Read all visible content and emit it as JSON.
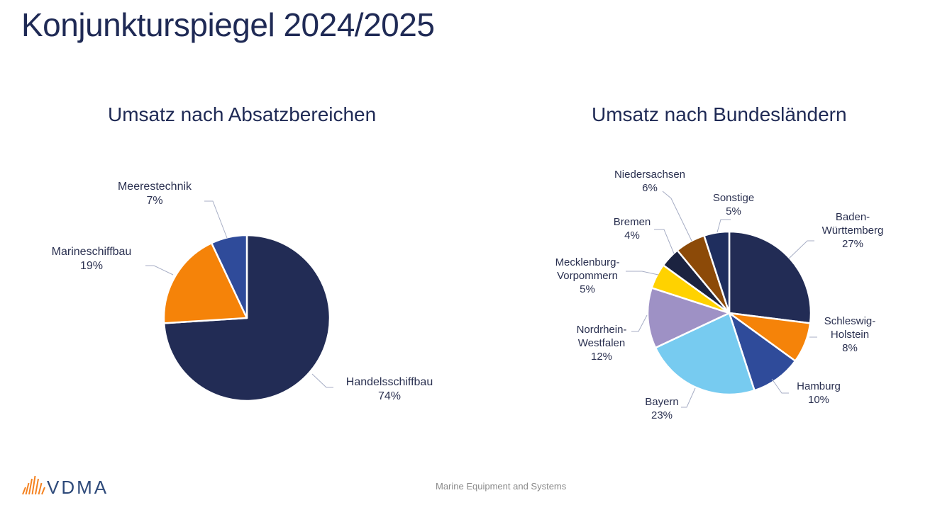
{
  "page": {
    "title": "Konjunkturspiegel 2024/2025",
    "footer": "Marine Equipment and Systems",
    "logo_text": "VDMA",
    "logo_color": "#f58220"
  },
  "chart_data": [
    {
      "type": "pie",
      "title": "Umsatz nach Absatzbereichen",
      "slices": [
        {
          "label": [
            "Handelsschiffbau"
          ],
          "percent_label": "74%",
          "value": 74,
          "color": "#222c55"
        },
        {
          "label": [
            "Marineschiffbau"
          ],
          "percent_label": "19%",
          "value": 19,
          "color": "#f58309"
        },
        {
          "label": [
            "Meerestechnik"
          ],
          "percent_label": "7%",
          "value": 7,
          "color": "#2f4b9a"
        }
      ]
    },
    {
      "type": "pie",
      "title": "Umsatz nach Bundesländern",
      "slices": [
        {
          "label": [
            "Baden-",
            "Württemberg"
          ],
          "percent_label": "27%",
          "value": 27,
          "color": "#222c55"
        },
        {
          "label": [
            "Schleswig-",
            "Holstein"
          ],
          "percent_label": "8%",
          "value": 8,
          "color": "#f58309"
        },
        {
          "label": [
            "Hamburg"
          ],
          "percent_label": "10%",
          "value": 10,
          "color": "#2f4b9a"
        },
        {
          "label": [
            "Bayern"
          ],
          "percent_label": "23%",
          "value": 23,
          "color": "#77cbf0"
        },
        {
          "label": [
            "Nordrhein-",
            "Westfalen"
          ],
          "percent_label": "12%",
          "value": 12,
          "color": "#9e91c5"
        },
        {
          "label": [
            "Mecklenburg-",
            "Vorpommern"
          ],
          "percent_label": "5%",
          "value": 5,
          "color": "#ffd200"
        },
        {
          "label": [
            "Bremen"
          ],
          "percent_label": "4%",
          "value": 4,
          "color": "#1b2340"
        },
        {
          "label": [
            "Niedersachsen"
          ],
          "percent_label": "6%",
          "value": 6,
          "color": "#8c4a08"
        },
        {
          "label": [
            "Sonstige"
          ],
          "percent_label": "5%",
          "value": 5,
          "color": "#1f2e5e"
        }
      ]
    }
  ]
}
